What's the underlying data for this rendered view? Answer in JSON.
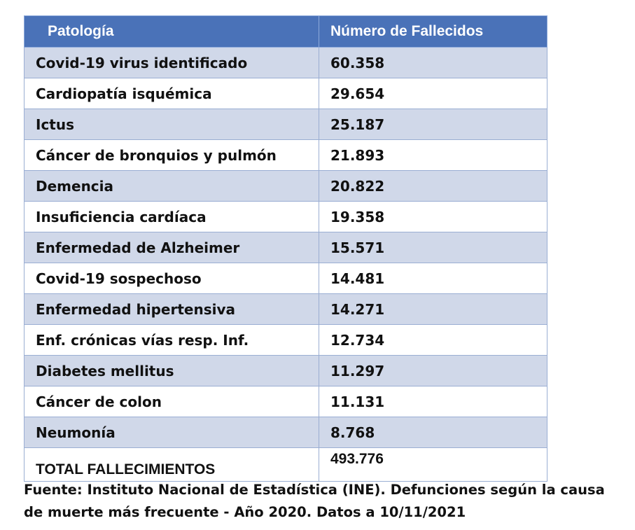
{
  "table": {
    "header": [
      "Patología",
      "Número de Fallecidos"
    ],
    "rows": [
      [
        "Covid-19 virus identificado",
        "60.358"
      ],
      [
        "Cardiopatía isquémica",
        "29.654"
      ],
      [
        "Ictus",
        "25.187"
      ],
      [
        "Cáncer de bronquios y pulmón",
        "21.893"
      ],
      [
        "Demencia",
        "20.822"
      ],
      [
        "Insuficiencia cardíaca",
        "19.358"
      ],
      [
        "Enfermedad de Alzheimer",
        "15.571"
      ],
      [
        "Covid-19 sospechoso",
        "14.481"
      ],
      [
        "Enfermedad hipertensiva",
        "14.271"
      ],
      [
        "Enf. crónicas vías resp. Inf.",
        "12.734"
      ],
      [
        "Diabetes mellitus",
        "11.297"
      ],
      [
        "Cáncer de colon",
        "11.131"
      ],
      [
        "Neumonía",
        "8.768"
      ],
      [
        "TOTAL FALLECIMIENTOS",
        "493.776"
      ]
    ]
  },
  "footer": {
    "lines": [
      "Fuente: Instituto Nacional de Estadística (INE). Defunciones según la causa",
      "de muerte más frecuente - Año 2020. Datos a 10/11/2021"
    ]
  }
}
